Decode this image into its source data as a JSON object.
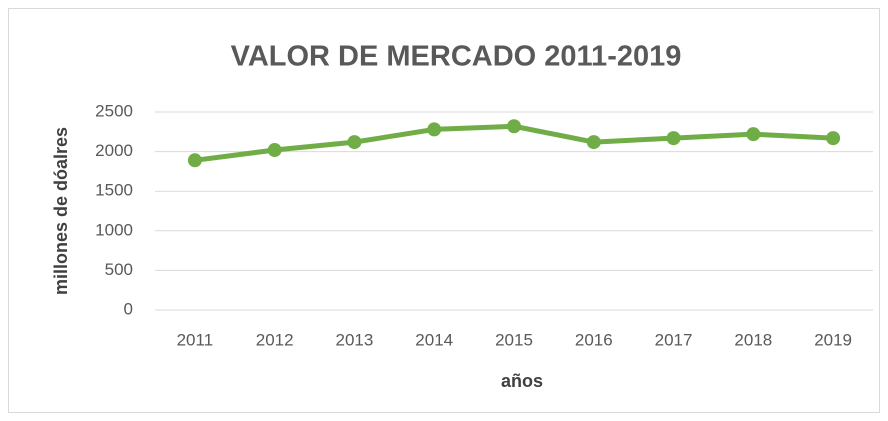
{
  "chart_data": {
    "type": "line",
    "title": "VALOR DE MERCADO 2011-2019",
    "x_label": "años",
    "y_label": "millones de dóalres",
    "categories": [
      "2011",
      "2012",
      "2013",
      "2014",
      "2015",
      "2016",
      "2017",
      "2018",
      "2019"
    ],
    "values": [
      1890,
      2020,
      2120,
      2280,
      2320,
      2120,
      2170,
      2220,
      2170
    ],
    "color": "#70ad47",
    "ylim": [
      0,
      2500
    ],
    "yticks": [
      0,
      500,
      1000,
      1500,
      2000,
      2500
    ],
    "grid": true
  }
}
